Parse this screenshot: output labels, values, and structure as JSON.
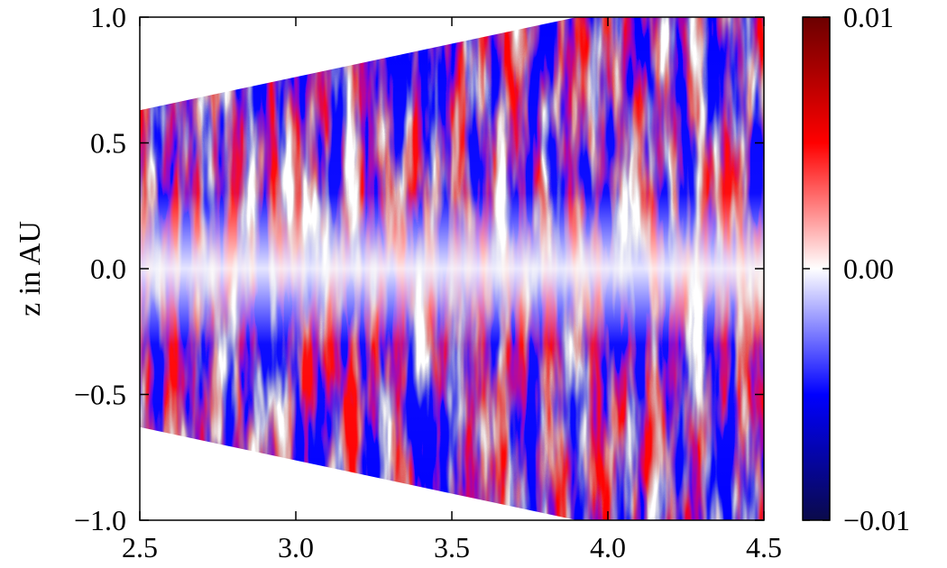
{
  "chart_data": {
    "type": "heatmap",
    "xlabel": "",
    "ylabel": "z in AU",
    "xlim": [
      2.5,
      4.5
    ],
    "ylim": [
      -1.0,
      1.0
    ],
    "x_ticks": [
      "2.5",
      "3.0",
      "3.5",
      "4.0",
      "4.5"
    ],
    "y_ticks": [
      "−1.0",
      "−0.5",
      "0.0",
      "0.5",
      "1.0"
    ],
    "x_tick_values": [
      2.5,
      3.0,
      3.5,
      4.0,
      4.5
    ],
    "y_tick_values": [
      -1.0,
      -0.5,
      0.0,
      0.5,
      1.0
    ],
    "domain_boundary": {
      "upper": [
        [
          2.5,
          0.63
        ],
        [
          3.9,
          1.0
        ],
        [
          4.5,
          1.0
        ]
      ],
      "lower": [
        [
          2.5,
          -0.63
        ],
        [
          3.9,
          -1.0
        ],
        [
          4.5,
          -1.0
        ]
      ]
    },
    "colorbar": {
      "range": [
        -0.01,
        0.01
      ],
      "ticks": [
        "0.01",
        "0.00",
        "−0.01"
      ],
      "tick_values": [
        0.01,
        0.0,
        -0.01
      ],
      "colormap": [
        "#0a0a4a",
        "#0000ff",
        "#ffffff",
        "#ff0000",
        "#6b0000"
      ]
    },
    "grid": false
  }
}
